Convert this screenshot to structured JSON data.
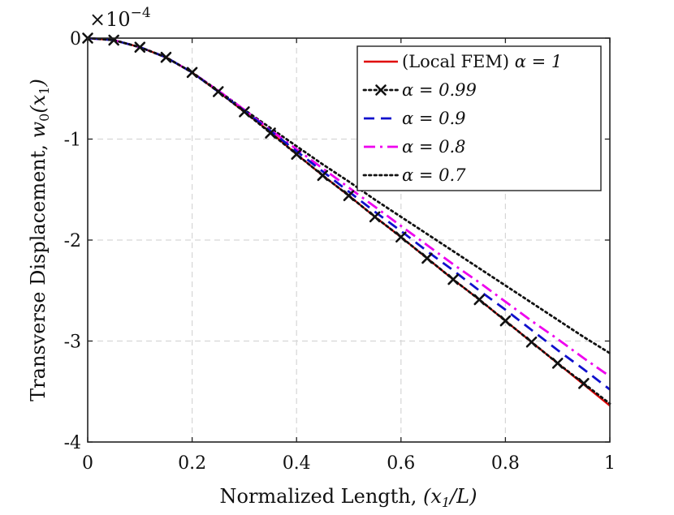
{
  "chart_data": {
    "type": "line",
    "title": "",
    "xlabel": "Normalized Length, (x1/L)",
    "ylabel": "Transverse Displacement, w0(x1)",
    "ylabel_prefix": "Transverse Displacement, ",
    "ylabel_math": "w",
    "ylabel_sub": "0",
    "ylabel_arg": "(x",
    "ylabel_arg_sub": "1",
    "ylabel_close": ")",
    "xlabel_prefix": "Normalized Length, ",
    "xlabel_math_open": "(x",
    "xlabel_math_sub": "1",
    "xlabel_math_close": "/L)",
    "y_scale_base": "×10",
    "y_scale_exp": "−4",
    "xlim": [
      0,
      1
    ],
    "ylim": [
      -4,
      0
    ],
    "grid": true,
    "legend_position": "top-right",
    "x_ticks": [
      0,
      0.2,
      0.4,
      0.6,
      0.8,
      1
    ],
    "x_tick_labels": [
      "0",
      "0.2",
      "0.4",
      "0.6",
      "0.8",
      "1"
    ],
    "y_ticks": [
      0,
      -1,
      -2,
      -3,
      -4
    ],
    "y_tick_labels": [
      "0",
      "-1",
      "-2",
      "-3",
      "-4"
    ],
    "x": [
      0,
      0.05,
      0.1,
      0.15,
      0.2,
      0.25,
      0.3,
      0.35,
      0.4,
      0.45,
      0.5,
      0.55,
      0.6,
      0.65,
      0.7,
      0.75,
      0.8,
      0.85,
      0.9,
      0.95,
      1.0
    ],
    "series": [
      {
        "name": "(Local FEM) α = 1",
        "legend_prefix": "(Local FEM) ",
        "legend_alpha": "α = 1",
        "color": "#e00000",
        "style": "solid",
        "marker": "none",
        "values": [
          0,
          -0.02,
          -0.09,
          -0.19,
          -0.34,
          -0.53,
          -0.73,
          -0.93,
          -1.15,
          -1.36,
          -1.56,
          -1.77,
          -1.97,
          -2.18,
          -2.39,
          -2.59,
          -2.8,
          -3.01,
          -3.22,
          -3.43,
          -3.64
        ]
      },
      {
        "name": "α = 0.99",
        "legend_prefix": "",
        "legend_alpha": "α = 0.99",
        "color": "#111111",
        "style": "dotted",
        "marker": "x",
        "values": [
          0,
          -0.02,
          -0.09,
          -0.19,
          -0.34,
          -0.53,
          -0.73,
          -0.94,
          -1.15,
          -1.36,
          -1.56,
          -1.77,
          -1.97,
          -2.18,
          -2.39,
          -2.59,
          -2.8,
          -3.01,
          -3.22,
          -3.42,
          -3.62
        ]
      },
      {
        "name": "α = 0.9",
        "legend_prefix": "",
        "legend_alpha": "α = 0.9",
        "color": "#1010cc",
        "style": "dashed",
        "marker": "none",
        "values": [
          0,
          -0.02,
          -0.09,
          -0.19,
          -0.34,
          -0.53,
          -0.72,
          -0.92,
          -1.12,
          -1.32,
          -1.52,
          -1.72,
          -1.91,
          -2.11,
          -2.3,
          -2.5,
          -2.69,
          -2.89,
          -3.09,
          -3.28,
          -3.48
        ]
      },
      {
        "name": "α = 0.8",
        "legend_prefix": "",
        "legend_alpha": "α = 0.8",
        "color": "#ee00ee",
        "style": "dashdot",
        "marker": "none",
        "values": [
          0,
          -0.02,
          -0.09,
          -0.19,
          -0.34,
          -0.52,
          -0.71,
          -0.91,
          -1.1,
          -1.29,
          -1.48,
          -1.67,
          -1.86,
          -2.05,
          -2.24,
          -2.42,
          -2.61,
          -2.8,
          -2.98,
          -3.17,
          -3.35
        ]
      },
      {
        "name": "α = 0.7",
        "legend_prefix": "",
        "legend_alpha": "α = 0.7",
        "color": "#111111",
        "style": "dotted",
        "marker": "none",
        "values": [
          0,
          -0.02,
          -0.09,
          -0.19,
          -0.34,
          -0.52,
          -0.71,
          -0.89,
          -1.07,
          -1.25,
          -1.42,
          -1.6,
          -1.77,
          -1.94,
          -2.11,
          -2.28,
          -2.45,
          -2.62,
          -2.79,
          -2.96,
          -3.12
        ]
      }
    ]
  }
}
